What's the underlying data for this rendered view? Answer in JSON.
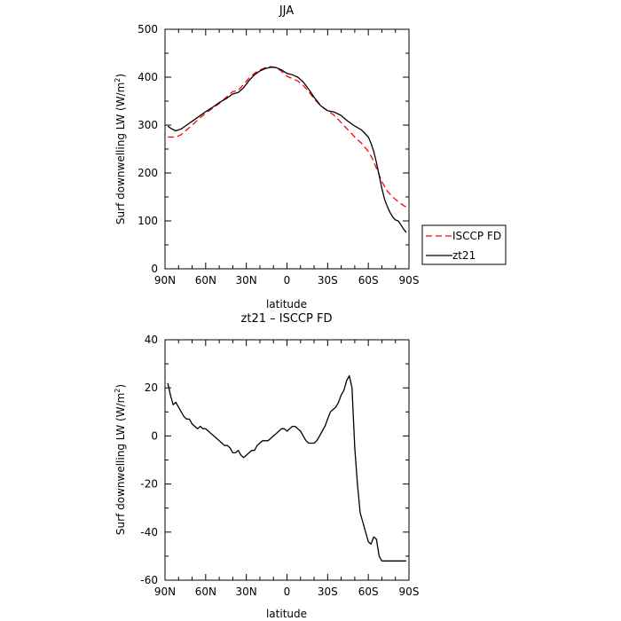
{
  "chart_data": [
    {
      "type": "line",
      "title": "JJA",
      "xlabel": "latitude",
      "ylabel_prefix": "Surf downwelling LW (W/m",
      "ylabel_sup": "2",
      "ylabel_suffix": ")",
      "xlim": [
        90,
        -90
      ],
      "ylim": [
        0,
        500
      ],
      "x_tick_values": [
        90,
        60,
        30,
        0,
        -30,
        -60,
        -90
      ],
      "x_tick_labels": [
        "90N",
        "60N",
        "30N",
        "0",
        "30S",
        "60S",
        "90S"
      ],
      "y_ticks": [
        0,
        100,
        200,
        300,
        400,
        500
      ],
      "grid": false,
      "legend_position": "outside-right",
      "series": [
        {
          "name": "ISCCP FD",
          "color": "#ff0000",
          "dash": "dashed",
          "x": [
            88,
            85,
            82,
            78,
            74,
            70,
            65,
            60,
            55,
            50,
            45,
            40,
            36,
            32,
            28,
            24,
            20,
            16,
            12,
            8,
            4,
            0,
            -4,
            -8,
            -12,
            -16,
            -20,
            -25,
            -30,
            -35,
            -40,
            -45,
            -50,
            -55,
            -60,
            -63,
            -66,
            -70,
            -74,
            -78,
            -82,
            -86,
            -88
          ],
          "y": [
            275,
            275,
            275,
            280,
            290,
            300,
            313,
            325,
            335,
            345,
            358,
            370,
            372,
            385,
            398,
            408,
            415,
            420,
            422,
            420,
            412,
            402,
            397,
            392,
            383,
            370,
            355,
            340,
            330,
            320,
            305,
            290,
            275,
            262,
            245,
            230,
            210,
            182,
            162,
            150,
            140,
            132,
            129
          ]
        },
        {
          "name": "zt21",
          "color": "#000000",
          "dash": "solid",
          "x": [
            88,
            85,
            82,
            78,
            74,
            70,
            65,
            60,
            55,
            50,
            45,
            40,
            36,
            32,
            28,
            24,
            20,
            16,
            12,
            8,
            4,
            0,
            -4,
            -8,
            -12,
            -16,
            -20,
            -25,
            -30,
            -35,
            -40,
            -45,
            -50,
            -55,
            -60,
            -62,
            -64,
            -66,
            -68,
            -70,
            -72,
            -74,
            -76,
            -78,
            -80,
            -82,
            -84,
            -86,
            -88
          ],
          "y": [
            298,
            292,
            288,
            292,
            300,
            308,
            318,
            328,
            337,
            347,
            355,
            365,
            368,
            378,
            393,
            405,
            413,
            418,
            421,
            420,
            415,
            408,
            405,
            400,
            390,
            375,
            358,
            340,
            330,
            327,
            320,
            308,
            298,
            290,
            275,
            262,
            245,
            222,
            195,
            168,
            145,
            130,
            118,
            108,
            102,
            100,
            92,
            83,
            76
          ]
        }
      ]
    },
    {
      "type": "line",
      "title": "zt21 – ISCCP FD",
      "xlabel": "latitude",
      "ylabel_prefix": "Surf downwelling LW (W/m",
      "ylabel_sup": "2",
      "ylabel_suffix": ")",
      "xlim": [
        90,
        -90
      ],
      "ylim": [
        -60,
        40
      ],
      "x_tick_values": [
        90,
        60,
        30,
        0,
        -30,
        -60,
        -90
      ],
      "x_tick_labels": [
        "90N",
        "60N",
        "30N",
        "0",
        "30S",
        "60S",
        "90S"
      ],
      "y_ticks": [
        -60,
        -40,
        -20,
        0,
        20,
        40
      ],
      "grid": false,
      "series": [
        {
          "name": "",
          "color": "#000000",
          "dash": "solid",
          "x": [
            88,
            86,
            84,
            82,
            80,
            78,
            76,
            74,
            72,
            70,
            68,
            66,
            64,
            62,
            60,
            58,
            56,
            54,
            52,
            50,
            48,
            46,
            44,
            42,
            40,
            38,
            36,
            34,
            32,
            30,
            28,
            26,
            24,
            22,
            20,
            18,
            16,
            14,
            12,
            10,
            8,
            6,
            4,
            2,
            0,
            -2,
            -4,
            -6,
            -8,
            -10,
            -12,
            -14,
            -16,
            -18,
            -20,
            -22,
            -24,
            -26,
            -28,
            -30,
            -32,
            -34,
            -36,
            -38,
            -40,
            -42,
            -44,
            -46,
            -48,
            -50,
            -52,
            -54,
            -56,
            -58,
            -60,
            -62,
            -64,
            -66,
            -68,
            -70,
            -72,
            -74,
            -76,
            -78,
            -80,
            -82,
            -84,
            -86,
            -88
          ],
          "y": [
            22,
            17,
            13,
            14,
            12,
            10,
            8,
            7,
            7,
            5,
            4,
            3,
            4,
            3,
            3,
            2,
            1,
            0,
            -1,
            -2,
            -3,
            -4,
            -4,
            -5,
            -7,
            -7,
            -6,
            -8,
            -9,
            -8,
            -7,
            -6,
            -6,
            -4,
            -3,
            -2,
            -2,
            -2,
            -1,
            0,
            1,
            2,
            3,
            3,
            2,
            3,
            4,
            4,
            3,
            2,
            0,
            -2,
            -3,
            -3,
            -3,
            -2,
            0,
            2,
            4,
            7,
            10,
            11,
            12,
            14,
            17,
            19,
            23,
            25,
            20,
            -5,
            -20,
            -32,
            -36,
            -40,
            -44,
            -45,
            -42,
            -43,
            -50,
            -52,
            -52,
            -52,
            -52,
            -52,
            -52,
            -52,
            -52,
            -52,
            -52
          ],
          "x_clip_min": -89
        }
      ]
    }
  ]
}
